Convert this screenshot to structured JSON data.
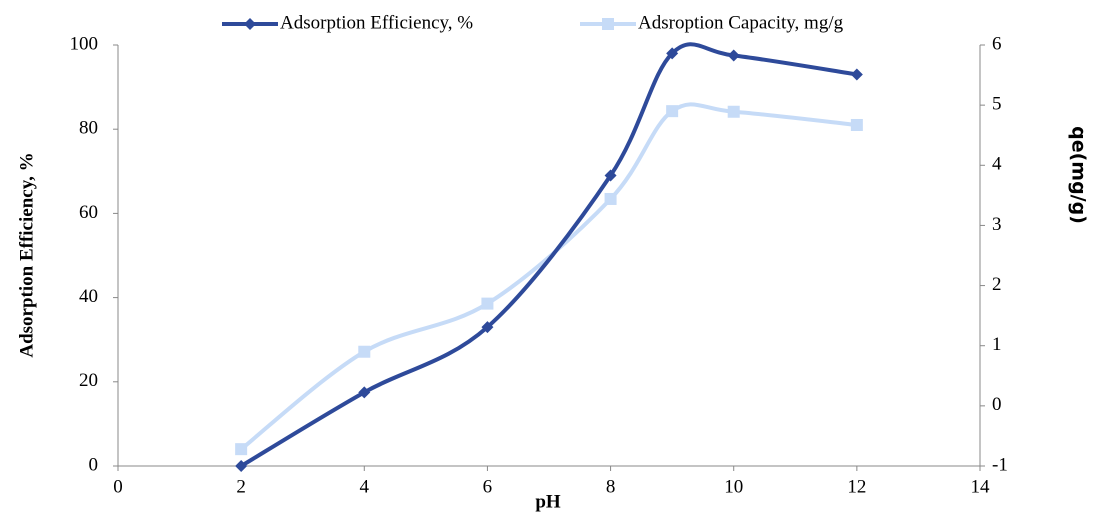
{
  "chart_data": {
    "type": "line",
    "xlabel": "pH",
    "ylabel": "Adsorption Efficiency, %",
    "y2label": "qe(mg/g)",
    "x": [
      2,
      4,
      6,
      8,
      9,
      10,
      12
    ],
    "series": [
      {
        "name": "Adsorption Efficiency, %",
        "color": "#2e4a9a",
        "marker": "diamond",
        "values": [
          0,
          17.5,
          33,
          69,
          98,
          97.5,
          93
        ]
      },
      {
        "name": "Adsroption Capacity, mg/g",
        "color": "#c6dbf7",
        "marker": "square",
        "axis": "y2",
        "values": [
          -0.72,
          0.9,
          1.7,
          3.44,
          4.9,
          4.89,
          4.67
        ]
      }
    ],
    "xlim": [
      0,
      14
    ],
    "xticks": [
      0,
      2,
      4,
      6,
      8,
      10,
      12,
      14
    ],
    "ylim": [
      0,
      100
    ],
    "yticks": [
      0,
      20,
      40,
      60,
      80,
      100
    ],
    "y2lim": [
      -1,
      6
    ],
    "y2ticks": [
      -1,
      0,
      1,
      2,
      3,
      4,
      5,
      6
    ],
    "smooth": true,
    "grid": false,
    "legend": "top"
  }
}
